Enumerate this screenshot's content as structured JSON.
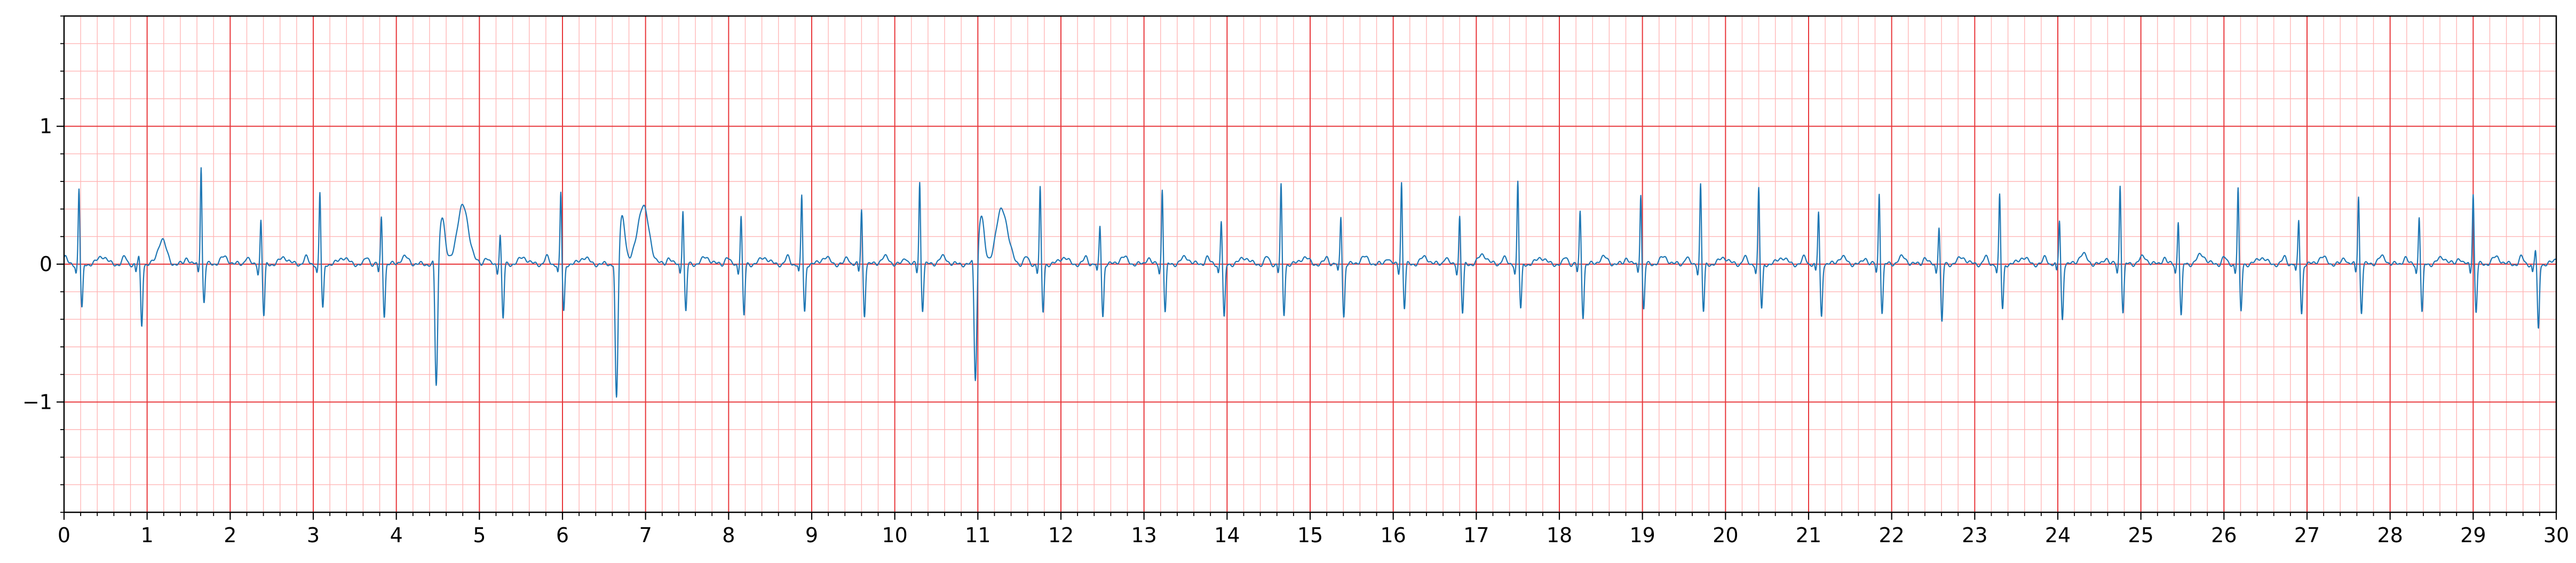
{
  "chart_data": {
    "type": "line",
    "title": "",
    "xlabel": "",
    "ylabel": "",
    "xlim": [
      0,
      30
    ],
    "ylim": [
      -1.8,
      1.8
    ],
    "x_major_ticks": [
      0,
      1,
      2,
      3,
      4,
      5,
      6,
      7,
      8,
      9,
      10,
      11,
      12,
      13,
      14,
      15,
      16,
      17,
      18,
      19,
      20,
      21,
      22,
      23,
      24,
      25,
      26,
      27,
      28,
      29,
      30
    ],
    "x_tick_labels": [
      "0",
      "1",
      "2",
      "3",
      "4",
      "5",
      "6",
      "7",
      "8",
      "9",
      "10",
      "11",
      "12",
      "13",
      "14",
      "15",
      "16",
      "17",
      "18",
      "19",
      "20",
      "21",
      "22",
      "23",
      "24",
      "25",
      "26",
      "27",
      "28",
      "29",
      "30"
    ],
    "x_minor_step": 0.2,
    "y_major_ticks": [
      -1,
      0,
      1
    ],
    "y_tick_labels": [
      "−1",
      "0",
      "1"
    ],
    "y_minor_step": 0.2,
    "grid": true,
    "colors": {
      "line": "#1f77b4",
      "major_grid": "#e8373b",
      "minor_grid": "#ffb6b6",
      "axes": "#000000"
    },
    "series": [
      {
        "beats": [
          {
            "t": 0.18,
            "amp": 0.55,
            "s": -0.33,
            "kind": "n",
            "tw": 0.06
          },
          {
            "t": 0.9,
            "amp": 0.05,
            "s": -0.45,
            "kind": "n",
            "tw": 0.18
          },
          {
            "t": 1.65,
            "amp": 0.72,
            "s": -0.28,
            "kind": "n",
            "tw": 0.05
          },
          {
            "t": 2.37,
            "amp": 0.32,
            "s": -0.38,
            "kind": "n",
            "tw": 0.05
          },
          {
            "t": 3.08,
            "amp": 0.52,
            "s": -0.33,
            "kind": "n",
            "tw": 0.05
          },
          {
            "t": 3.82,
            "amp": 0.34,
            "s": -0.37,
            "kind": "n",
            "tw": 0.05
          },
          {
            "t": 4.48,
            "amp": -0.95,
            "kind": "v",
            "tw": 0.42
          },
          {
            "t": 5.25,
            "amp": 0.22,
            "s": -0.4,
            "kind": "n",
            "tw": 0.05
          },
          {
            "t": 5.98,
            "amp": 0.52,
            "s": -0.35,
            "kind": "n",
            "tw": 0.05
          },
          {
            "t": 6.65,
            "amp": -1.05,
            "kind": "v",
            "tw": 0.42
          },
          {
            "t": 7.45,
            "amp": 0.4,
            "s": -0.35,
            "kind": "n",
            "tw": 0.05
          },
          {
            "t": 8.15,
            "amp": 0.35,
            "s": -0.38,
            "kind": "n",
            "tw": 0.05
          },
          {
            "t": 8.88,
            "amp": 0.5,
            "s": -0.35,
            "kind": "n",
            "tw": 0.05
          },
          {
            "t": 9.6,
            "amp": 0.4,
            "s": -0.37,
            "kind": "n",
            "tw": 0.05
          },
          {
            "t": 10.3,
            "amp": 0.6,
            "s": -0.33,
            "kind": "n",
            "tw": 0.05
          },
          {
            "t": 10.97,
            "amp": -0.9,
            "kind": "v",
            "tw": 0.4
          },
          {
            "t": 11.75,
            "amp": 0.55,
            "s": -0.35,
            "kind": "n",
            "tw": 0.05
          },
          {
            "t": 12.47,
            "amp": 0.28,
            "s": -0.38,
            "kind": "n",
            "tw": 0.05
          },
          {
            "t": 13.22,
            "amp": 0.55,
            "s": -0.35,
            "kind": "n",
            "tw": 0.05
          },
          {
            "t": 13.93,
            "amp": 0.32,
            "s": -0.4,
            "kind": "n",
            "tw": 0.05
          },
          {
            "t": 14.65,
            "amp": 0.57,
            "s": -0.37,
            "kind": "n",
            "tw": 0.05
          },
          {
            "t": 15.37,
            "amp": 0.35,
            "s": -0.38,
            "kind": "n",
            "tw": 0.05
          },
          {
            "t": 16.1,
            "amp": 0.6,
            "s": -0.32,
            "kind": "n",
            "tw": 0.05
          },
          {
            "t": 16.8,
            "amp": 0.35,
            "s": -0.36,
            "kind": "n",
            "tw": 0.07
          },
          {
            "t": 17.5,
            "amp": 0.6,
            "s": -0.33,
            "kind": "n",
            "tw": 0.05
          },
          {
            "t": 18.25,
            "amp": 0.38,
            "s": -0.38,
            "kind": "n",
            "tw": 0.05
          },
          {
            "t": 18.98,
            "amp": 0.52,
            "s": -0.33,
            "kind": "n",
            "tw": 0.05
          },
          {
            "t": 19.7,
            "amp": 0.58,
            "s": -0.35,
            "kind": "n",
            "tw": 0.05
          },
          {
            "t": 20.4,
            "amp": 0.55,
            "s": -0.33,
            "kind": "n",
            "tw": 0.05
          },
          {
            "t": 21.12,
            "amp": 0.38,
            "s": -0.38,
            "kind": "n",
            "tw": 0.05
          },
          {
            "t": 21.85,
            "amp": 0.52,
            "s": -0.35,
            "kind": "n",
            "tw": 0.05
          },
          {
            "t": 22.57,
            "amp": 0.28,
            "s": -0.43,
            "kind": "n",
            "tw": 0.05
          },
          {
            "t": 23.3,
            "amp": 0.5,
            "s": -0.33,
            "kind": "n",
            "tw": 0.05
          },
          {
            "t": 24.02,
            "amp": 0.32,
            "s": -0.4,
            "kind": "n",
            "tw": 0.07
          },
          {
            "t": 24.75,
            "amp": 0.58,
            "s": -0.35,
            "kind": "n",
            "tw": 0.05
          },
          {
            "t": 25.45,
            "amp": 0.32,
            "s": -0.38,
            "kind": "n",
            "tw": 0.07
          },
          {
            "t": 26.17,
            "amp": 0.55,
            "s": -0.35,
            "kind": "n",
            "tw": 0.05
          },
          {
            "t": 26.9,
            "amp": 0.32,
            "s": -0.36,
            "kind": "n",
            "tw": 0.05
          },
          {
            "t": 27.62,
            "amp": 0.5,
            "s": -0.35,
            "kind": "n",
            "tw": 0.05
          },
          {
            "t": 28.35,
            "amp": 0.35,
            "s": -0.36,
            "kind": "n",
            "tw": 0.05
          },
          {
            "t": 29.0,
            "amp": 0.52,
            "s": -0.35,
            "kind": "n",
            "tw": 0.05
          },
          {
            "t": 29.75,
            "amp": 0.1,
            "s": -0.48,
            "kind": "n",
            "tw": 0.05
          }
        ]
      }
    ]
  }
}
